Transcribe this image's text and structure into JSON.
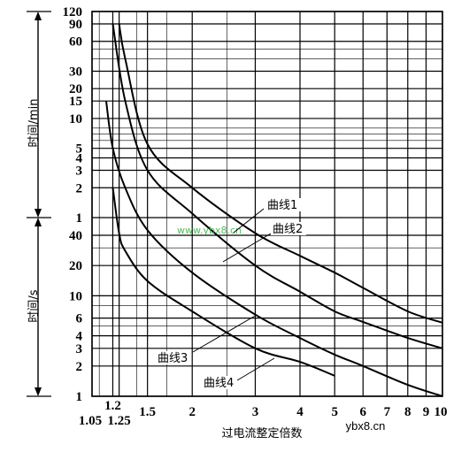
{
  "chart_data": {
    "type": "line",
    "xlabel": "过电流整定倍数",
    "x_scale": "log",
    "xlim": [
      1.05,
      10
    ],
    "x_ticks": [
      "1.05",
      "1.2",
      "1.25",
      "1.5",
      "2",
      "3",
      "4",
      "5",
      "6",
      "7",
      "8",
      "9",
      "10"
    ],
    "y_scale": "log (two stacked decades)",
    "y_panels": [
      {
        "label": "时间/min",
        "unit": "min",
        "ticks": [
          "1",
          "2",
          "3",
          "4",
          "5",
          "10",
          "15",
          "20",
          "30",
          "60",
          "90",
          "120"
        ]
      },
      {
        "label": "时间/s",
        "unit": "s",
        "ticks": [
          "1",
          "2",
          "3",
          "4",
          "6",
          "10",
          "20",
          "40"
        ]
      }
    ],
    "grid": true,
    "series": [
      {
        "name": "曲线1",
        "x": [
          1.25,
          1.3,
          1.5,
          2,
          3,
          4,
          5,
          6,
          8,
          10
        ],
        "y_seconds": [
          5400,
          2400,
          330,
          120,
          42,
          25,
          17,
          12,
          7,
          5.4
        ]
      },
      {
        "name": "曲线2",
        "x": [
          1.2,
          1.3,
          1.5,
          2,
          3,
          4,
          5,
          6,
          8,
          10
        ],
        "y_seconds": [
          5400,
          900,
          180,
          66,
          20,
          11,
          7,
          5.5,
          3.8,
          3
        ]
      },
      {
        "name": "曲线3",
        "x": [
          1.15,
          1.2,
          1.3,
          1.5,
          2,
          3,
          4,
          5,
          6,
          8,
          10
        ],
        "y_seconds": [
          900,
          300,
          120,
          45,
          17,
          6.5,
          3.8,
          2.6,
          2,
          1.3,
          1
        ]
      },
      {
        "name": "曲线4",
        "x": [
          1.2,
          1.25,
          1.3,
          1.5,
          2,
          3,
          4,
          5
        ],
        "y_seconds": [
          120,
          42,
          28,
          14,
          7,
          3,
          2.2,
          1.6
        ]
      }
    ],
    "watermark": "www.ybx8.cn",
    "source": "ybx8.cn"
  }
}
